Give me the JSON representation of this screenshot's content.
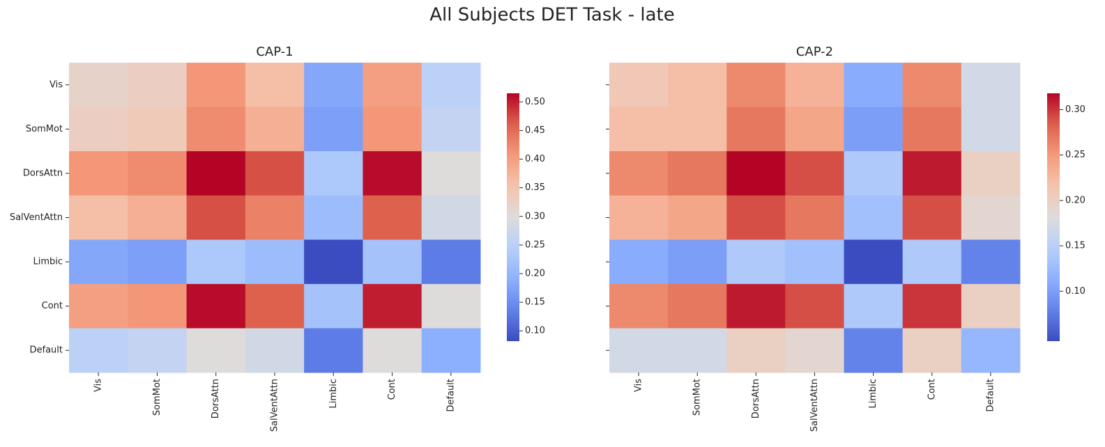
{
  "title": "All Subjects DET Task - late",
  "chart_data": [
    {
      "type": "heatmap",
      "title": "CAP-1",
      "cmap": "coolwarm",
      "x_categories": [
        "Vis",
        "SomMot",
        "DorsAttn",
        "SalVentAttn",
        "Limbic",
        "Cont",
        "Default"
      ],
      "y_categories": [
        "Vis",
        "SomMot",
        "DorsAttn",
        "SalVentAttn",
        "Limbic",
        "Cont",
        "Default"
      ],
      "values": [
        [
          0.32,
          0.33,
          0.41,
          0.36,
          0.18,
          0.4,
          0.25
        ],
        [
          0.33,
          0.34,
          0.42,
          0.38,
          0.17,
          0.41,
          0.26
        ],
        [
          0.41,
          0.42,
          0.515,
          0.47,
          0.23,
          0.51,
          0.3
        ],
        [
          0.36,
          0.38,
          0.47,
          0.43,
          0.21,
          0.46,
          0.28
        ],
        [
          0.18,
          0.17,
          0.23,
          0.21,
          0.082,
          0.22,
          0.13
        ],
        [
          0.4,
          0.41,
          0.51,
          0.46,
          0.22,
          0.5,
          0.3
        ],
        [
          0.25,
          0.26,
          0.3,
          0.28,
          0.13,
          0.3,
          0.19
        ]
      ],
      "clim": [
        0.082,
        0.515
      ],
      "cticks": [
        {
          "value": 0.1,
          "label": "0.10"
        },
        {
          "value": 0.15,
          "label": "0.15"
        },
        {
          "value": 0.2,
          "label": "0.20"
        },
        {
          "value": 0.25,
          "label": "0.25"
        },
        {
          "value": 0.3,
          "label": "0.30"
        },
        {
          "value": 0.35,
          "label": "0.35"
        },
        {
          "value": 0.4,
          "label": "0.40"
        },
        {
          "value": 0.45,
          "label": "0.45"
        },
        {
          "value": 0.5,
          "label": "0.50"
        }
      ]
    },
    {
      "type": "heatmap",
      "title": "CAP-2",
      "cmap": "coolwarm",
      "x_categories": [
        "Vis",
        "SomMot",
        "DorsAttn",
        "SalVentAttn",
        "Limbic",
        "Cont",
        "Default"
      ],
      "values": [
        [
          0.21,
          0.22,
          0.26,
          0.23,
          0.11,
          0.26,
          0.17
        ],
        [
          0.22,
          0.22,
          0.27,
          0.24,
          0.1,
          0.27,
          0.17
        ],
        [
          0.26,
          0.27,
          0.318,
          0.29,
          0.14,
          0.31,
          0.2
        ],
        [
          0.23,
          0.24,
          0.29,
          0.27,
          0.13,
          0.29,
          0.19
        ],
        [
          0.11,
          0.1,
          0.14,
          0.13,
          0.045,
          0.14,
          0.08
        ],
        [
          0.26,
          0.27,
          0.31,
          0.29,
          0.14,
          0.3,
          0.2
        ],
        [
          0.17,
          0.17,
          0.2,
          0.19,
          0.08,
          0.2,
          0.12
        ]
      ],
      "clim": [
        0.045,
        0.318
      ],
      "cticks": [
        {
          "value": 0.1,
          "label": "0.10"
        },
        {
          "value": 0.15,
          "label": "0.15"
        },
        {
          "value": 0.2,
          "label": "0.20"
        },
        {
          "value": 0.25,
          "label": "0.25"
        },
        {
          "value": 0.3,
          "label": "0.30"
        }
      ]
    }
  ]
}
